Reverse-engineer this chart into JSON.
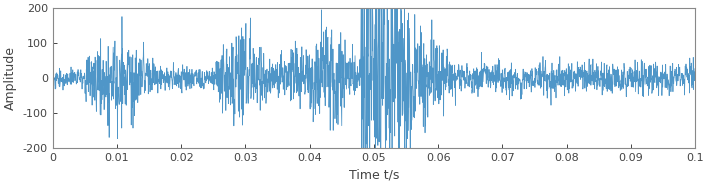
{
  "title": "",
  "xlabel": "Time t/s",
  "ylabel": "Amplitude",
  "xlim": [
    0,
    0.1
  ],
  "ylim": [
    -200,
    200
  ],
  "xticks": [
    0,
    0.01,
    0.02,
    0.03,
    0.04,
    0.05,
    0.06,
    0.07,
    0.08,
    0.09,
    0.1
  ],
  "yticks": [
    -200,
    -100,
    0,
    100,
    200
  ],
  "line_color": "#4f96c8",
  "line_width": 0.55,
  "sample_rate": 25600,
  "duration": 0.1,
  "seed": 17,
  "background_color": "#ffffff",
  "spine_color": "#888888",
  "tick_color": "#444444",
  "label_fontsize": 9,
  "tick_fontsize": 8
}
